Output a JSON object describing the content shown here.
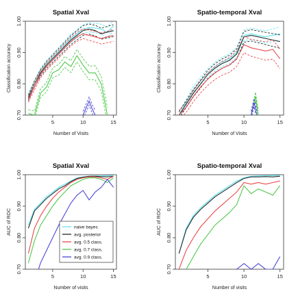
{
  "colors": {
    "naive_bayes": "#5fe3ef",
    "avg_posterior": "#1e2a2a",
    "avg_05": "#e8474b",
    "avg_07": "#4fc94b",
    "avg_09": "#4a45d6"
  },
  "legend": [
    {
      "label": "naive bayes",
      "color_key": "naive_bayes"
    },
    {
      "label": "avg. posterior",
      "color_key": "avg_posterior"
    },
    {
      "label": "avg. 0.5 class.",
      "color_key": "avg_05"
    },
    {
      "label": "avg. 0.7 class.",
      "color_key": "avg_07"
    },
    {
      "label": "avg. 0.9 class.",
      "color_key": "avg_09"
    }
  ],
  "chart_data": [
    {
      "type": "line",
      "title": "Spatial Xval",
      "xlabel": "Number of Visits",
      "ylabel": "Classification accuracy",
      "xlim": [
        0.5,
        15.5
      ],
      "ylim": [
        0.7,
        1.0
      ],
      "xticks": [
        "5",
        "10",
        "15"
      ],
      "xtick_values": [
        5,
        10,
        15
      ],
      "yticks": [
        "0.70",
        "0.80",
        "0.90",
        "1.00"
      ],
      "ytick_values": [
        0.7,
        0.8,
        0.9,
        1.0
      ],
      "legend": false,
      "series": [
        {
          "key": "naive_bayes",
          "dashed_band": true,
          "band": 0.008,
          "x": [
            1,
            2,
            3,
            4,
            5,
            6,
            7,
            8,
            9,
            10,
            11,
            12,
            13,
            14,
            15
          ],
          "y": [
            0.76,
            0.8,
            0.84,
            0.865,
            0.885,
            0.905,
            0.925,
            0.945,
            0.96,
            0.975,
            0.98,
            0.978,
            0.975,
            0.965,
            0.985
          ]
        },
        {
          "key": "avg_posterior",
          "dashed_band": true,
          "band": 0.009,
          "x": [
            1,
            2,
            3,
            4,
            5,
            6,
            7,
            8,
            9,
            10,
            11,
            12,
            13,
            14,
            15
          ],
          "y": [
            0.755,
            0.8,
            0.835,
            0.86,
            0.88,
            0.9,
            0.92,
            0.94,
            0.955,
            0.97,
            0.975,
            0.97,
            0.96,
            0.965,
            0.97
          ]
        },
        {
          "key": "avg_05",
          "dashed_band": true,
          "band": 0.009,
          "x": [
            1,
            2,
            3,
            4,
            5,
            6,
            7,
            8,
            9,
            10,
            11,
            12,
            13,
            14,
            15
          ],
          "y": [
            0.75,
            0.79,
            0.83,
            0.855,
            0.875,
            0.895,
            0.915,
            0.935,
            0.95,
            0.96,
            0.955,
            0.95,
            0.945,
            0.95,
            0.955
          ]
        },
        {
          "key": "avg_07",
          "dashed_band": true,
          "band": 0.012,
          "x": [
            1,
            2,
            3,
            4,
            5,
            6,
            7,
            8,
            9,
            10,
            11,
            12,
            13,
            14
          ],
          "y": [
            0.705,
            0.7,
            0.77,
            0.79,
            0.835,
            0.845,
            0.87,
            0.855,
            0.89,
            0.86,
            0.835,
            0.835,
            0.8,
            0.7
          ]
        },
        {
          "key": "avg_09",
          "dashed_band": true,
          "band": 0.012,
          "x": [
            10,
            11,
            11.5,
            12
          ],
          "y": [
            0.7,
            0.745,
            0.72,
            0.7
          ]
        }
      ]
    },
    {
      "type": "line",
      "title": "Spatio-temporal Xval",
      "xlabel": "Number of Visits",
      "ylabel": "Classification accuracy",
      "xlim": [
        0.5,
        15.5
      ],
      "ylim": [
        0.7,
        1.0
      ],
      "xticks": [
        "5",
        "10",
        "15"
      ],
      "xtick_values": [
        5,
        10,
        15
      ],
      "yticks": [
        "0.70",
        "0.80",
        "0.90",
        "1.00"
      ],
      "ytick_values": [
        0.7,
        0.8,
        0.9,
        1.0
      ],
      "legend": false,
      "series": [
        {
          "key": "naive_bayes",
          "dashed_band": true,
          "band": 0.01,
          "x": [
            1,
            2,
            3,
            4,
            5,
            6,
            7,
            8,
            9,
            10,
            11,
            12,
            13,
            14,
            15
          ],
          "y": [
            0.7,
            0.74,
            0.78,
            0.81,
            0.835,
            0.855,
            0.87,
            0.88,
            0.9,
            0.955,
            0.96,
            0.955,
            0.95,
            0.955,
            0.96
          ]
        },
        {
          "key": "avg_posterior",
          "dashed_band": true,
          "band": 0.01,
          "x": [
            1,
            2,
            3,
            4,
            5,
            6,
            7,
            8,
            9,
            10,
            11,
            12,
            13,
            14,
            15
          ],
          "y": [
            0.7,
            0.735,
            0.77,
            0.8,
            0.83,
            0.85,
            0.865,
            0.875,
            0.895,
            0.95,
            0.955,
            0.95,
            0.945,
            0.94,
            0.935
          ]
        },
        {
          "key": "avg_05",
          "dashed_band": true,
          "band": 0.015,
          "x": [
            1,
            2,
            3,
            4,
            5,
            6,
            7,
            8,
            9,
            10,
            11,
            12,
            13,
            14,
            15
          ],
          "y": [
            0.7,
            0.725,
            0.76,
            0.79,
            0.815,
            0.835,
            0.85,
            0.86,
            0.88,
            0.925,
            0.915,
            0.91,
            0.905,
            0.91,
            0.88
          ]
        },
        {
          "key": "avg_07",
          "dashed_band": true,
          "band": 0.012,
          "x": [
            11,
            11.6,
            12
          ],
          "y": [
            0.7,
            0.76,
            0.7
          ]
        },
        {
          "key": "avg_09",
          "dashed_band": true,
          "band": 0.012,
          "x": [
            11,
            11.4,
            11.8
          ],
          "y": [
            0.7,
            0.74,
            0.7
          ]
        }
      ]
    },
    {
      "type": "line",
      "title": "Spatial Xval",
      "xlabel": "Number of visits",
      "ylabel": "AUC of ROC",
      "xlim": [
        0.5,
        15.5
      ],
      "ylim": [
        0.7,
        1.0
      ],
      "xticks": [
        "5",
        "10",
        "15"
      ],
      "xtick_values": [
        5,
        10,
        15
      ],
      "yticks": [
        "0.70",
        "0.80",
        "0.90",
        "1.00"
      ],
      "ytick_values": [
        0.7,
        0.8,
        0.9,
        1.0
      ],
      "legend": true,
      "legend_position": "lower-left",
      "series": [
        {
          "key": "naive_bayes",
          "dashed_band": false,
          "x": [
            1,
            2,
            3,
            4,
            5,
            6,
            7,
            8,
            9,
            10,
            11,
            12,
            13,
            14,
            15
          ],
          "y": [
            0.84,
            0.89,
            0.91,
            0.93,
            0.945,
            0.96,
            0.97,
            0.98,
            0.99,
            0.993,
            0.995,
            0.996,
            0.996,
            0.997,
            0.998
          ]
        },
        {
          "key": "avg_posterior",
          "dashed_band": false,
          "x": [
            1,
            2,
            3,
            4,
            5,
            6,
            7,
            8,
            9,
            10,
            11,
            12,
            13,
            14,
            15
          ],
          "y": [
            0.83,
            0.885,
            0.905,
            0.925,
            0.94,
            0.955,
            0.965,
            0.978,
            0.988,
            0.992,
            0.995,
            0.995,
            0.994,
            0.993,
            0.995
          ]
        },
        {
          "key": "avg_05",
          "dashed_band": false,
          "x": [
            1,
            2,
            3,
            4,
            5,
            6,
            7,
            8,
            9,
            10,
            11,
            12,
            13,
            14,
            15
          ],
          "y": [
            0.75,
            0.83,
            0.87,
            0.9,
            0.925,
            0.945,
            0.96,
            0.975,
            0.985,
            0.99,
            0.993,
            0.993,
            0.99,
            0.985,
            0.995
          ]
        },
        {
          "key": "avg_07",
          "dashed_band": false,
          "x": [
            1,
            2,
            3,
            4,
            5,
            6,
            7,
            8,
            9,
            10,
            11,
            12,
            13,
            14,
            15
          ],
          "y": [
            0.72,
            0.79,
            0.84,
            0.87,
            0.9,
            0.925,
            0.945,
            0.965,
            0.975,
            0.985,
            0.99,
            0.99,
            0.985,
            0.975,
            0.99
          ]
        },
        {
          "key": "avg_09",
          "dashed_band": false,
          "x": [
            2,
            3,
            4,
            5,
            6,
            7,
            8,
            9,
            10,
            11,
            12,
            13,
            14,
            15
          ],
          "y": [
            0.66,
            0.72,
            0.76,
            0.8,
            0.84,
            0.875,
            0.91,
            0.935,
            0.95,
            0.92,
            0.945,
            0.96,
            0.985,
            0.96
          ]
        }
      ]
    },
    {
      "type": "line",
      "title": "Spatio-temporal Xval",
      "xlabel": "Number of visits",
      "ylabel": "AUC of ROC",
      "xlim": [
        0.5,
        15.5
      ],
      "ylim": [
        0.7,
        1.0
      ],
      "xticks": [
        "5",
        "10",
        "15"
      ],
      "xtick_values": [
        5,
        10,
        15
      ],
      "yticks": [
        "0.70",
        "0.80",
        "0.90",
        "1.00"
      ],
      "ytick_values": [
        0.7,
        0.8,
        0.9,
        1.0
      ],
      "legend": false,
      "series": [
        {
          "key": "naive_bayes",
          "dashed_band": false,
          "x": [
            1,
            2,
            3,
            4,
            5,
            6,
            7,
            8,
            9,
            10,
            11,
            12,
            13,
            14,
            15
          ],
          "y": [
            0.75,
            0.83,
            0.87,
            0.895,
            0.915,
            0.935,
            0.95,
            0.965,
            0.98,
            0.99,
            0.995,
            0.996,
            0.997,
            0.997,
            0.998
          ]
        },
        {
          "key": "avg_posterior",
          "dashed_band": false,
          "x": [
            1,
            2,
            3,
            4,
            5,
            6,
            7,
            8,
            9,
            10,
            11,
            12,
            13,
            14,
            15
          ],
          "y": [
            0.75,
            0.825,
            0.865,
            0.89,
            0.91,
            0.93,
            0.945,
            0.96,
            0.975,
            0.988,
            0.993,
            0.993,
            0.994,
            0.993,
            0.995
          ]
        },
        {
          "key": "avg_05",
          "dashed_band": false,
          "x": [
            1,
            2,
            3,
            4,
            5,
            6,
            7,
            8,
            9,
            10,
            11,
            12,
            13,
            14,
            15
          ],
          "y": [
            0.7,
            0.76,
            0.8,
            0.835,
            0.86,
            0.885,
            0.905,
            0.925,
            0.945,
            0.975,
            0.97,
            0.975,
            0.97,
            0.975,
            0.98
          ]
        },
        {
          "key": "avg_07",
          "dashed_band": false,
          "x": [
            1,
            2,
            3,
            4,
            5,
            6,
            7,
            8,
            9,
            10,
            11,
            12,
            13,
            14,
            15
          ],
          "y": [
            0.66,
            0.7,
            0.74,
            0.78,
            0.81,
            0.84,
            0.86,
            0.88,
            0.905,
            0.965,
            0.94,
            0.955,
            0.945,
            0.935,
            0.965
          ]
        },
        {
          "key": "avg_09",
          "dashed_band": false,
          "x": [
            8,
            9,
            10,
            11,
            12,
            13,
            14,
            15
          ],
          "y": [
            0.69,
            0.7,
            0.718,
            0.7,
            0.718,
            0.7,
            0.7,
            0.74
          ]
        }
      ]
    }
  ]
}
